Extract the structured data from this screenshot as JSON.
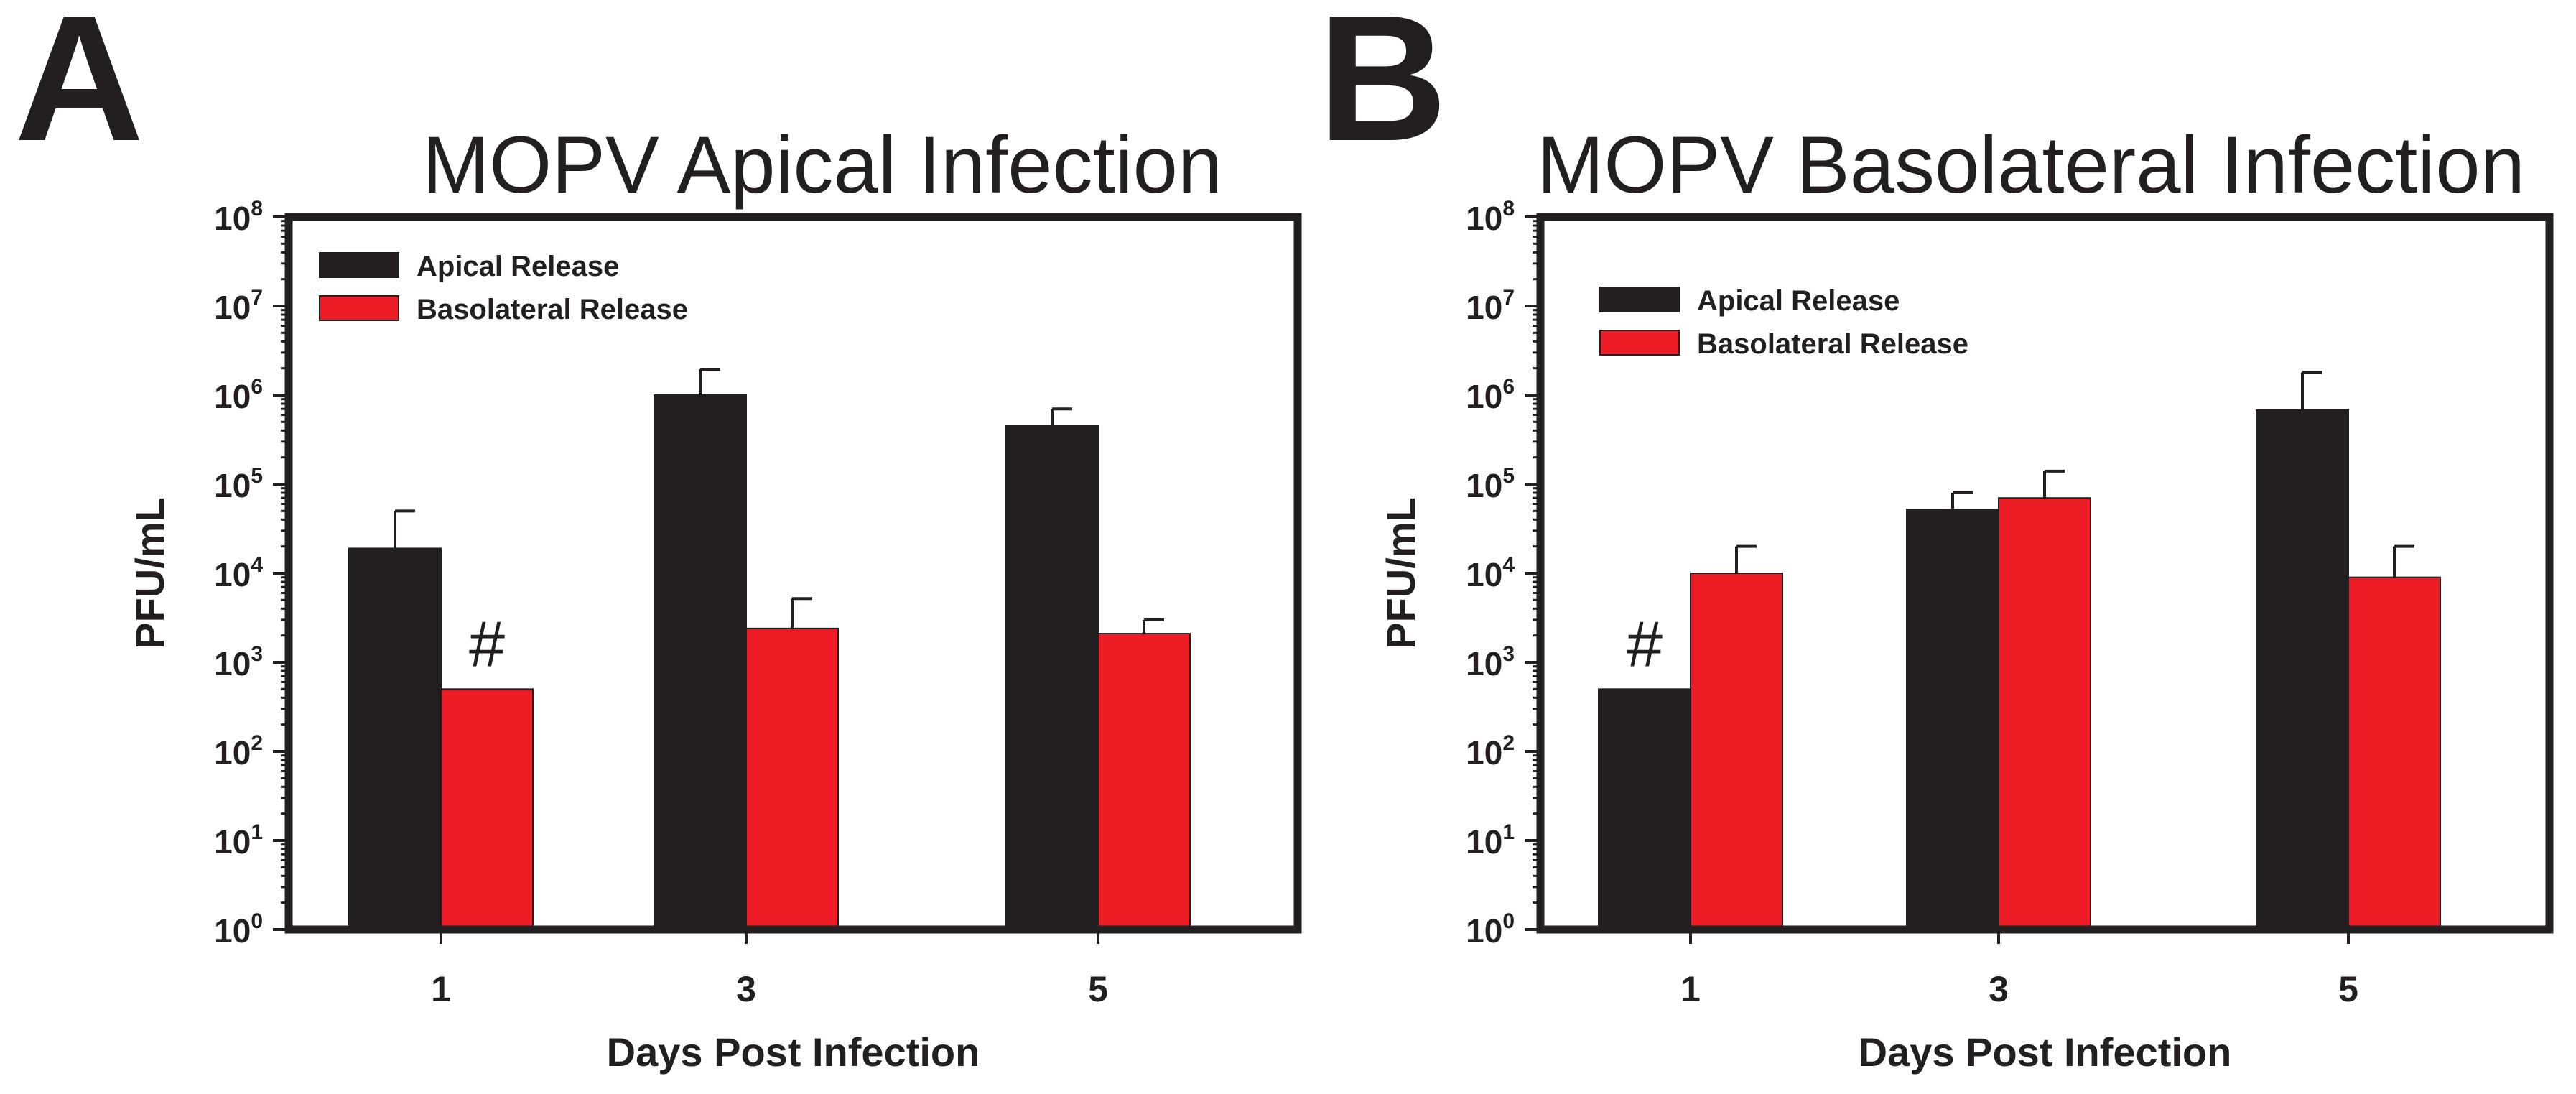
{
  "colors": {
    "apical": "#231f20",
    "basolateral": "#ed1c24",
    "axis": "#231f20",
    "text": "#231f20"
  },
  "chart_data": [
    {
      "panel": "A",
      "type": "bar",
      "title": "MOPV Apical Infection",
      "xlabel": "Days Post Infection",
      "ylabel": "PFU/mL",
      "yscale": "log",
      "ylim": [
        1,
        100000000
      ],
      "ytick_base": "10",
      "ytick_exponents": [
        "0",
        "1",
        "2",
        "3",
        "4",
        "5",
        "6",
        "7",
        "8"
      ],
      "categories": [
        "1",
        "3",
        "5"
      ],
      "series": [
        {
          "name": "Apical Release",
          "color_key": "apical",
          "values": [
            19000,
            1000000,
            450000
          ],
          "err_upper": [
            50000,
            1950000,
            700000
          ]
        },
        {
          "name": "Basolateral Release",
          "color_key": "basolateral",
          "values": [
            500,
            2400,
            2100
          ],
          "err_upper": [
            null,
            5200,
            3000
          ]
        }
      ],
      "annotations": [
        {
          "text": "#",
          "series": 1,
          "category": 0
        }
      ],
      "legend_position": "top-left"
    },
    {
      "panel": "B",
      "type": "bar",
      "title": "MOPV Basolateral Infection",
      "xlabel": "Days Post Infection",
      "ylabel": "PFU/mL",
      "yscale": "log",
      "ylim": [
        1,
        100000000
      ],
      "ytick_base": "10",
      "ytick_exponents": [
        "0",
        "1",
        "2",
        "3",
        "4",
        "5",
        "6",
        "7",
        "8"
      ],
      "categories": [
        "1",
        "3",
        "5"
      ],
      "series": [
        {
          "name": "Apical Release",
          "color_key": "apical",
          "values": [
            500,
            52000,
            680000
          ],
          "err_upper": [
            null,
            80000,
            1800000
          ]
        },
        {
          "name": "Basolateral Release",
          "color_key": "basolateral",
          "values": [
            10000,
            70000,
            9000
          ],
          "err_upper": [
            20000,
            140000,
            20000
          ]
        }
      ],
      "annotations": [
        {
          "text": "#",
          "series": 0,
          "category": 0
        }
      ],
      "legend_position": "top-left"
    }
  ]
}
